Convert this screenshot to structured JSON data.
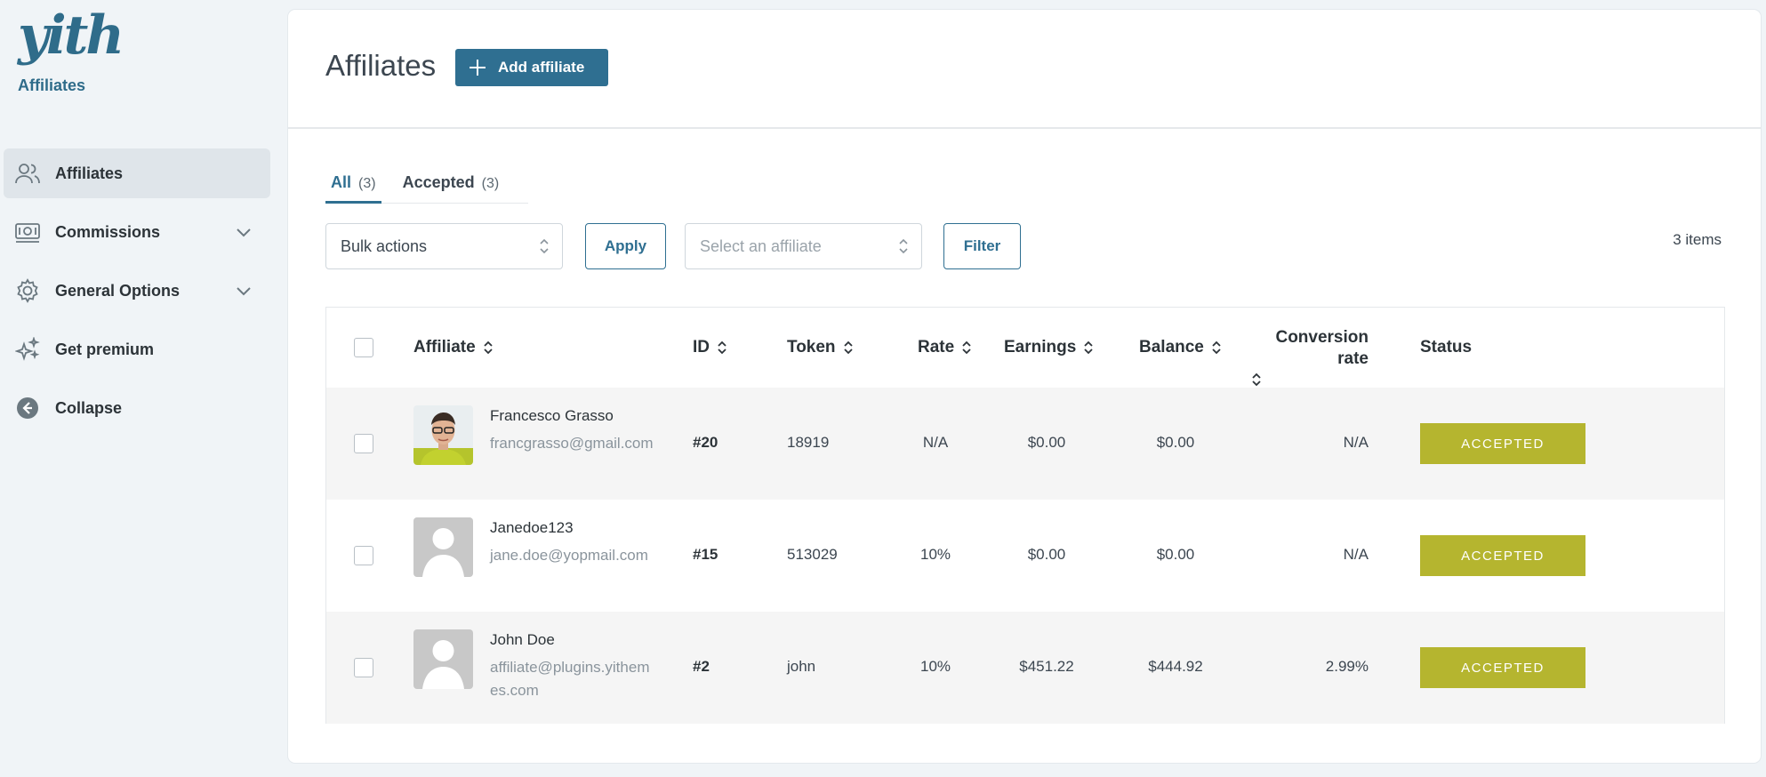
{
  "brand": {
    "logo_text": "yith",
    "label": "Affiliates"
  },
  "sidebar": {
    "items": [
      {
        "label": "Affiliates",
        "icon": "users-icon",
        "active": true
      },
      {
        "label": "Commissions",
        "icon": "money-icon",
        "has_submenu": true
      },
      {
        "label": "General Options",
        "icon": "gear-icon",
        "has_submenu": true
      },
      {
        "label": "Get premium",
        "icon": "sparkle-icon"
      },
      {
        "label": "Collapse",
        "icon": "collapse-arrow-icon"
      }
    ]
  },
  "header": {
    "title": "Affiliates",
    "add_button": "Add affiliate"
  },
  "tabs": [
    {
      "label": "All",
      "count": "(3)",
      "active": true
    },
    {
      "label": "Accepted",
      "count": "(3)",
      "active": false
    }
  ],
  "controls": {
    "bulk_actions": "Bulk actions",
    "apply": "Apply",
    "affiliate_select_placeholder": "Select an affiliate",
    "filter": "Filter",
    "items_count": "3 items"
  },
  "table": {
    "columns": {
      "affiliate": "Affiliate",
      "id": "ID",
      "token": "Token",
      "rate": "Rate",
      "earnings": "Earnings",
      "balance": "Balance",
      "conversion_rate_line1": "Conversion",
      "conversion_rate_line2": "rate",
      "status": "Status"
    },
    "rows": [
      {
        "name": "Francesco Grasso",
        "email": "francgrasso@gmail.com",
        "id": "#20",
        "token": "18919",
        "rate": "N/A",
        "earnings": "$0.00",
        "balance": "$0.00",
        "conversion": "N/A",
        "status": "ACCEPTED",
        "avatar": "photo"
      },
      {
        "name": "Janedoe123",
        "email": "jane.doe@yopmail.com",
        "id": "#15",
        "token": "513029",
        "rate": "10%",
        "earnings": "$0.00",
        "balance": "$0.00",
        "conversion": "N/A",
        "status": "ACCEPTED",
        "avatar": "default"
      },
      {
        "name": "John Doe",
        "email": "affiliate@plugins.yithemes.com",
        "id": "#2",
        "token": "john",
        "rate": "10%",
        "earnings": "$451.22",
        "balance": "$444.92",
        "conversion": "2.99%",
        "status": "ACCEPTED",
        "avatar": "default"
      }
    ]
  },
  "colors": {
    "accent": "#2f6f91",
    "status_accepted": "#b5b52f",
    "sidebar_bg": "#f0f4f7"
  }
}
